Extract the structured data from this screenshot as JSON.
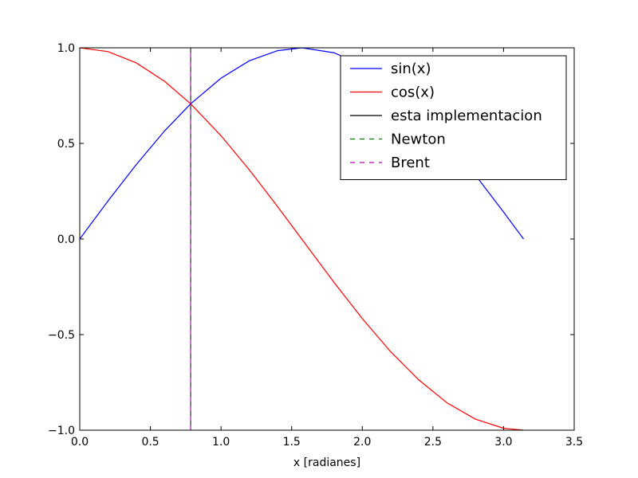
{
  "chart_data": {
    "type": "line",
    "title": "",
    "xlabel": "x [radianes]",
    "ylabel": "",
    "xlim": [
      0.0,
      3.5
    ],
    "ylim": [
      -1.0,
      1.0
    ],
    "xticks": [
      0.0,
      0.5,
      1.0,
      1.5,
      2.0,
      2.5,
      3.0,
      3.5
    ],
    "xtick_labels": [
      "0.0",
      "0.5",
      "1.0",
      "1.5",
      "2.0",
      "2.5",
      "3.0",
      "3.5"
    ],
    "yticks": [
      -1.0,
      -0.5,
      0.0,
      0.5,
      1.0
    ],
    "ytick_labels": [
      "−1.0",
      "−0.5",
      "0.0",
      "0.5",
      "1.0"
    ],
    "grid": false,
    "legend_position": "top-right",
    "series": [
      {
        "name": "sin(x)",
        "color": "#0000ff",
        "dash": "solid",
        "x": [
          0.0,
          0.2,
          0.4,
          0.6,
          0.785,
          1.0,
          1.2,
          1.4,
          1.571,
          1.8,
          2.0,
          2.2,
          2.4,
          2.6,
          2.8,
          3.0,
          3.1416
        ],
        "y": [
          0.0,
          0.199,
          0.389,
          0.565,
          0.707,
          0.841,
          0.932,
          0.985,
          1.0,
          0.974,
          0.909,
          0.808,
          0.675,
          0.516,
          0.335,
          0.141,
          0.0
        ]
      },
      {
        "name": "cos(x)",
        "color": "#ff0000",
        "dash": "solid",
        "x": [
          0.0,
          0.2,
          0.4,
          0.6,
          0.785,
          1.0,
          1.2,
          1.4,
          1.571,
          1.8,
          2.0,
          2.2,
          2.4,
          2.6,
          2.8,
          3.0,
          3.1416
        ],
        "y": [
          1.0,
          0.98,
          0.921,
          0.825,
          0.707,
          0.54,
          0.362,
          0.17,
          0.0,
          -0.227,
          -0.416,
          -0.589,
          -0.737,
          -0.857,
          -0.942,
          -0.99,
          -1.0
        ]
      },
      {
        "name": "esta implementacion",
        "color": "#000000",
        "dash": "solid",
        "x": [
          0.785,
          0.785
        ],
        "y": [
          -1.0,
          1.0
        ]
      },
      {
        "name": "Newton",
        "color": "#008000",
        "dash": "dashed",
        "x": [
          0.785,
          0.785
        ],
        "y": [
          -1.0,
          1.0
        ]
      },
      {
        "name": "Brent",
        "color": "#bf00bf",
        "dash": "dashed",
        "x": [
          0.785,
          0.785
        ],
        "y": [
          -1.0,
          1.0
        ]
      }
    ]
  }
}
